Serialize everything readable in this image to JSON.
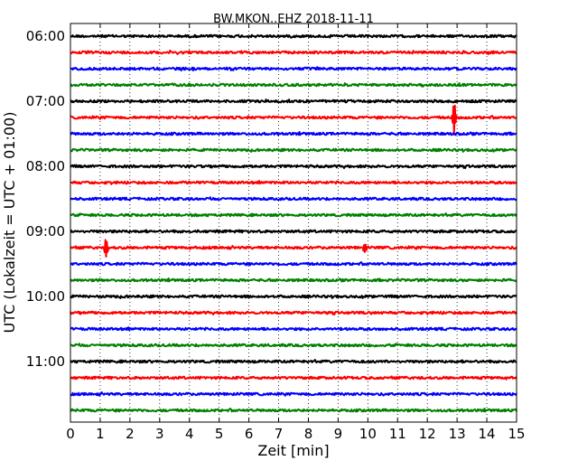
{
  "chart_data": {
    "type": "line",
    "title": "BW.MKON..EHZ 2018-11-11",
    "xlabel": "Zeit  [min]",
    "ylabel": "UTC (Lokalzeit = UTC + 01:00)",
    "xlim": [
      0,
      15
    ],
    "x_ticks": [
      "0",
      "1",
      "2",
      "3",
      "4",
      "5",
      "6",
      "7",
      "8",
      "9",
      "10",
      "11",
      "12",
      "13",
      "14",
      "15"
    ],
    "y_ticks": [
      {
        "label": "06:00",
        "row": 0
      },
      {
        "label": "07:00",
        "row": 4
      },
      {
        "label": "08:00",
        "row": 8
      },
      {
        "label": "09:00",
        "row": 12
      },
      {
        "label": "10:00",
        "row": 16
      },
      {
        "label": "11:00",
        "row": 20
      }
    ],
    "grid": "vertical-dotted",
    "row_interval_min": 15,
    "series": [
      {
        "start": "06:00",
        "color": "#000000",
        "events": []
      },
      {
        "start": "06:15",
        "color": "#ff0000",
        "events": []
      },
      {
        "start": "06:30",
        "color": "#0000ff",
        "events": []
      },
      {
        "start": "06:45",
        "color": "#008000",
        "events": []
      },
      {
        "start": "07:00",
        "color": "#000000",
        "events": []
      },
      {
        "start": "07:15",
        "color": "#ff0000",
        "events": [
          {
            "t": 12.9,
            "amp": 18
          }
        ]
      },
      {
        "start": "07:30",
        "color": "#0000ff",
        "events": []
      },
      {
        "start": "07:45",
        "color": "#008000",
        "events": []
      },
      {
        "start": "08:00",
        "color": "#000000",
        "events": []
      },
      {
        "start": "08:15",
        "color": "#ff0000",
        "events": []
      },
      {
        "start": "08:30",
        "color": "#0000ff",
        "events": []
      },
      {
        "start": "08:45",
        "color": "#008000",
        "events": []
      },
      {
        "start": "09:00",
        "color": "#000000",
        "events": []
      },
      {
        "start": "09:15",
        "color": "#ff0000",
        "events": [
          {
            "t": 1.2,
            "amp": 11
          },
          {
            "t": 9.9,
            "amp": 6
          }
        ]
      },
      {
        "start": "09:30",
        "color": "#0000ff",
        "events": []
      },
      {
        "start": "09:45",
        "color": "#008000",
        "events": []
      },
      {
        "start": "10:00",
        "color": "#000000",
        "events": []
      },
      {
        "start": "10:15",
        "color": "#ff0000",
        "events": []
      },
      {
        "start": "10:30",
        "color": "#0000ff",
        "events": []
      },
      {
        "start": "10:45",
        "color": "#008000",
        "events": []
      },
      {
        "start": "11:00",
        "color": "#000000",
        "events": []
      },
      {
        "start": "11:15",
        "color": "#ff0000",
        "events": []
      },
      {
        "start": "11:30",
        "color": "#0000ff",
        "events": []
      },
      {
        "start": "11:45",
        "color": "#008000",
        "events": []
      }
    ]
  }
}
